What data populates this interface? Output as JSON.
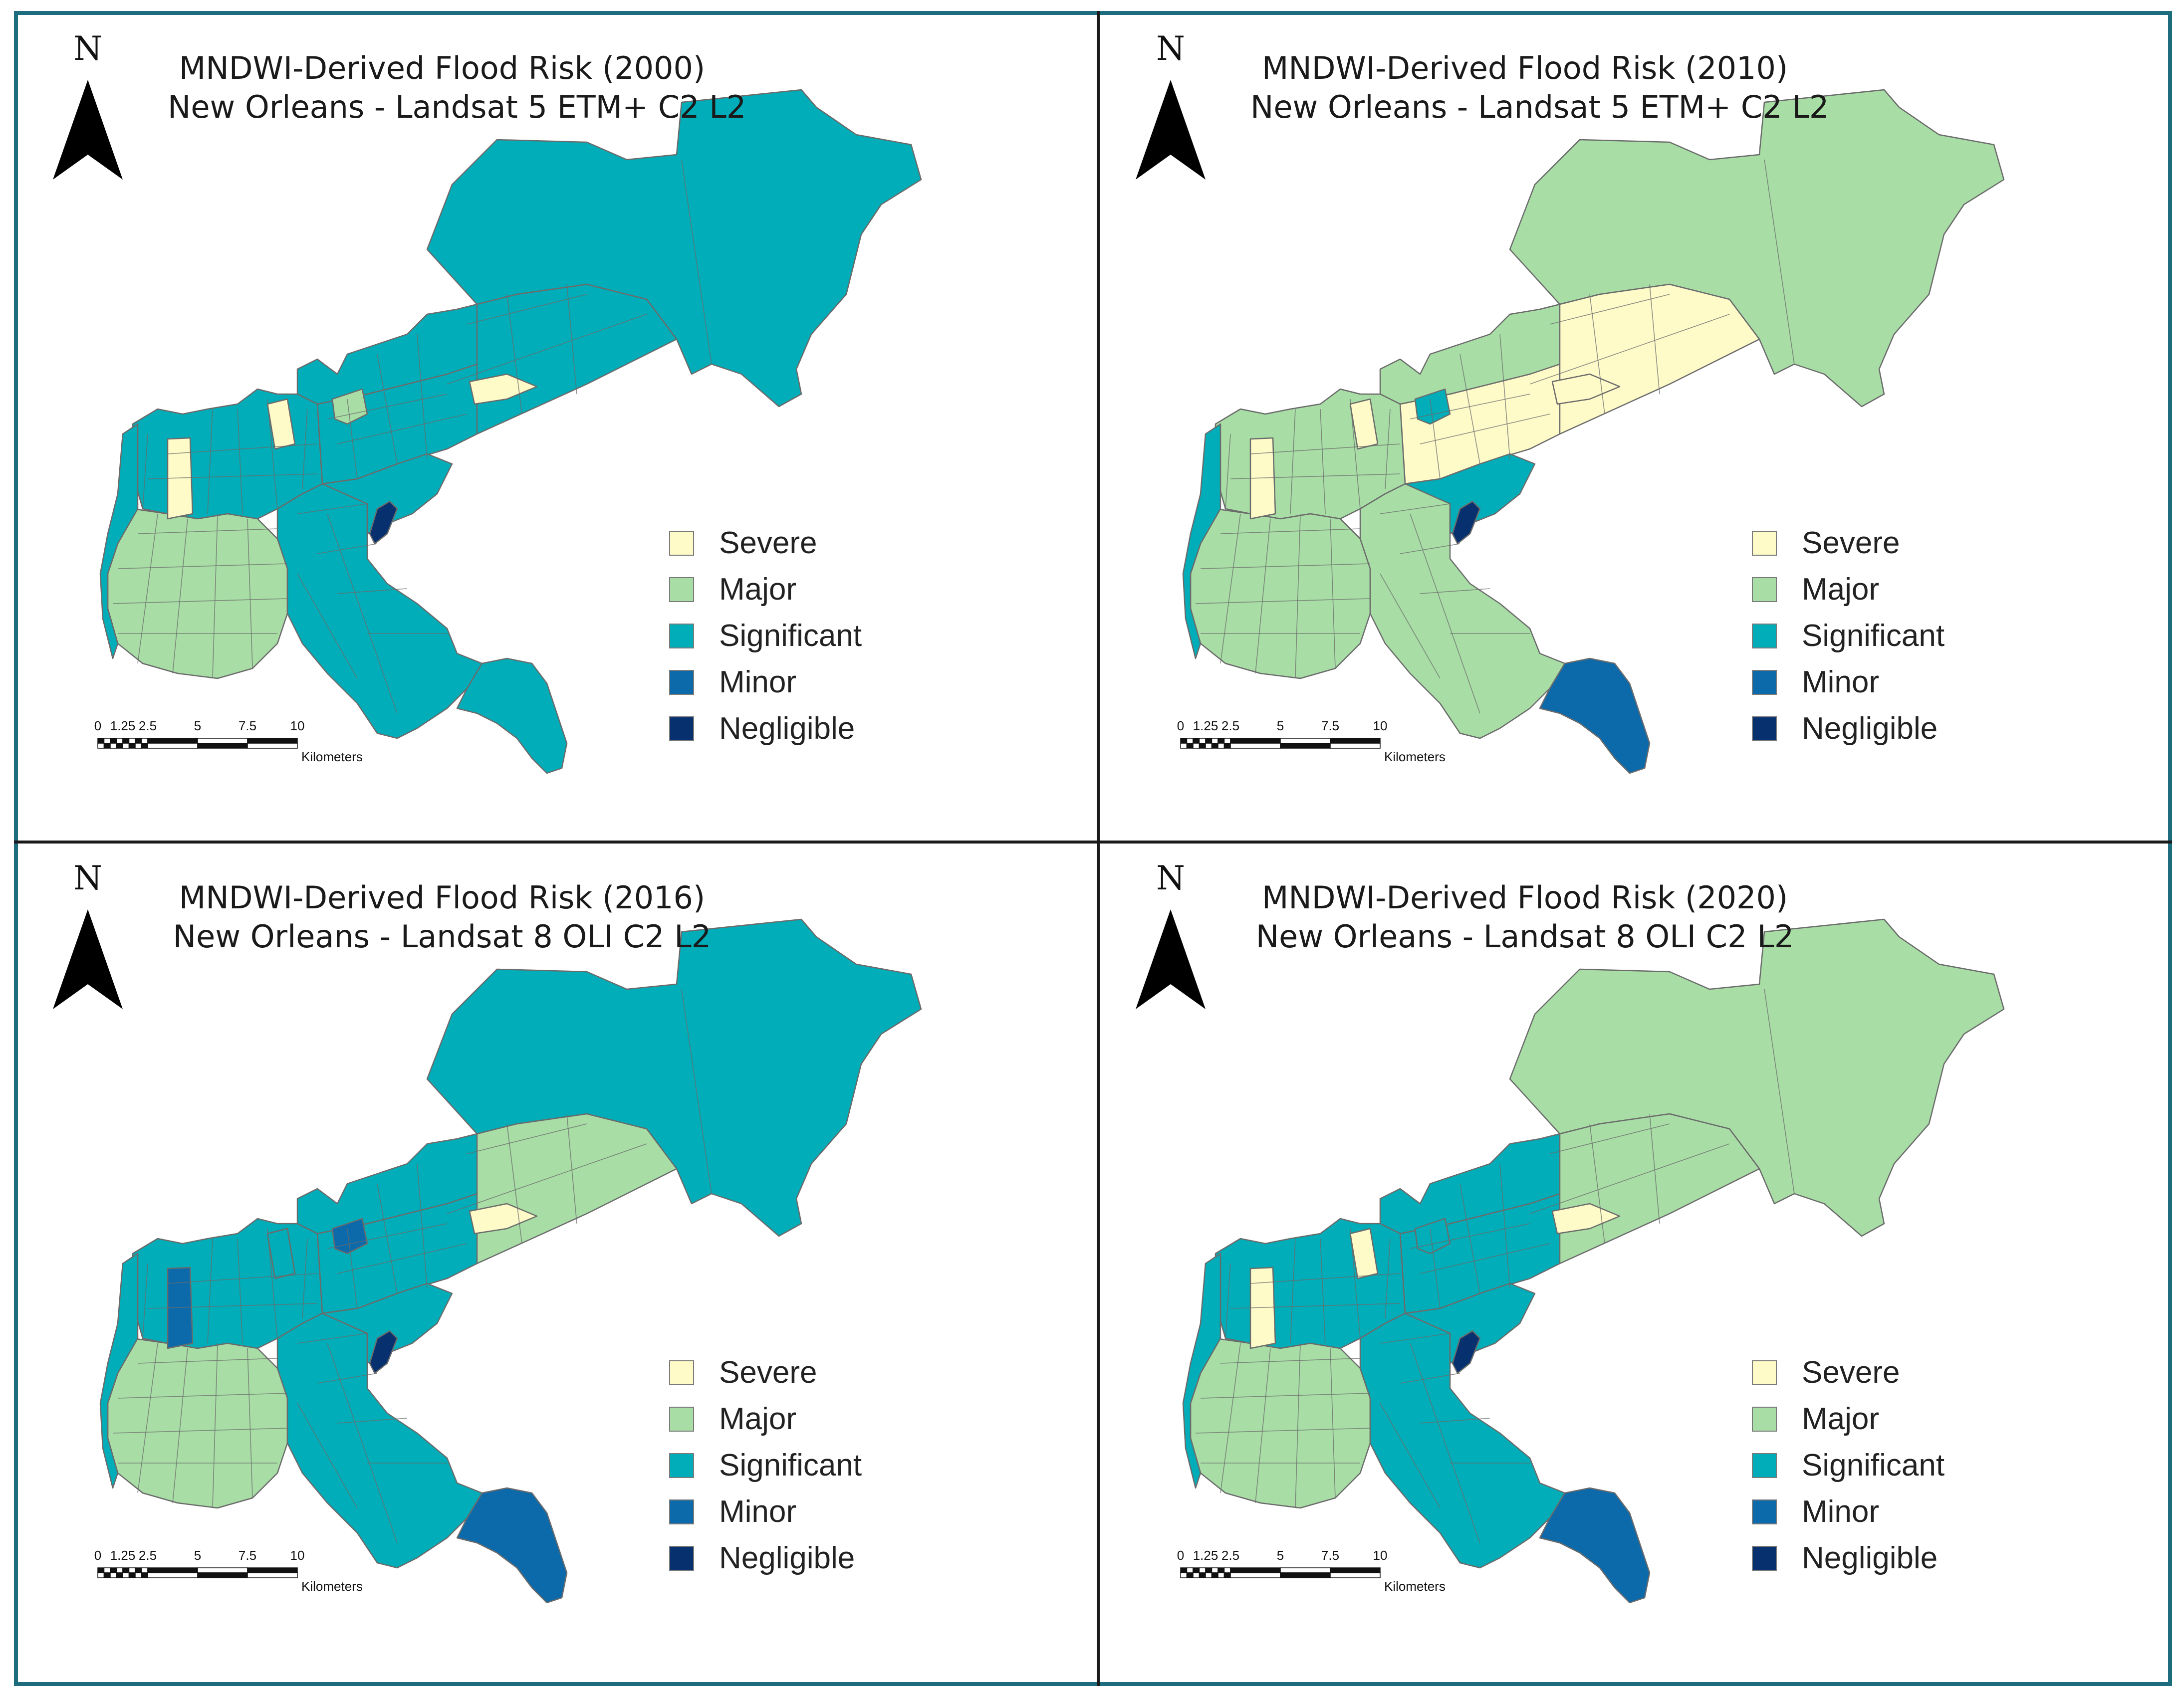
{
  "colors": {
    "severe": "#fefbc9",
    "major": "#a8dea6",
    "significant": "#00adb8",
    "minor": "#0d6aaa",
    "negligible": "#07316e",
    "frame": "#1d6d7e",
    "boundary": "#6b6b6b"
  },
  "legend_title": "",
  "legend": [
    {
      "key": "severe",
      "label": "Severe"
    },
    {
      "key": "major",
      "label": "Major"
    },
    {
      "key": "significant",
      "label": "Significant"
    },
    {
      "key": "minor",
      "label": "Minor"
    },
    {
      "key": "negligible",
      "label": "Negligible"
    }
  ],
  "north_arrow": {
    "label": "N",
    "icon": "north-arrow-icon"
  },
  "scale_bar": {
    "ticks": [
      "0",
      "1.25",
      "2.5",
      "5",
      "7.5",
      "10"
    ],
    "tick_values": [
      0,
      1.25,
      2.5,
      5,
      7.5,
      10
    ],
    "unit": "Kilometers"
  },
  "panels": [
    {
      "id": "2000",
      "title_line1": "MNDWI-Derived Flood Risk (2000)",
      "title_line2": "New Orleans - Landsat 5 ETM+ C2 L2",
      "region_class": {
        "ne_east": "significant",
        "ne_corridor": "significant",
        "central_band": "significant",
        "north_lakefront": "significant",
        "midcity": "significant",
        "uptown": "major",
        "west_strip": "significant",
        "algiers": "significant",
        "lower9": "significant",
        "algiers_tail": "significant",
        "industrial": "negligible",
        "severe_wedge": "severe",
        "severe_patch_west": "severe",
        "severe_patch_mid": "severe",
        "lakeview_pocket": "major"
      }
    },
    {
      "id": "2010",
      "title_line1": "MNDWI-Derived Flood Risk (2010)",
      "title_line2": "New Orleans - Landsat 5 ETM+ C2 L2",
      "region_class": {
        "ne_east": "major",
        "ne_corridor": "severe",
        "central_band": "severe",
        "north_lakefront": "major",
        "midcity": "major",
        "uptown": "major",
        "west_strip": "significant",
        "algiers": "major",
        "lower9": "significant",
        "algiers_tail": "minor",
        "industrial": "negligible",
        "severe_wedge": "severe",
        "severe_patch_west": "severe",
        "severe_patch_mid": "severe",
        "lakeview_pocket": "significant"
      }
    },
    {
      "id": "2016",
      "title_line1": "MNDWI-Derived Flood Risk (2016)",
      "title_line2": "New Orleans - Landsat 8 OLI C2 L2",
      "region_class": {
        "ne_east": "significant",
        "ne_corridor": "major",
        "central_band": "significant",
        "north_lakefront": "significant",
        "midcity": "significant",
        "uptown": "major",
        "west_strip": "significant",
        "algiers": "significant",
        "lower9": "significant",
        "algiers_tail": "minor",
        "industrial": "negligible",
        "severe_wedge": "severe",
        "severe_patch_west": "minor",
        "severe_patch_mid": "significant",
        "lakeview_pocket": "minor"
      }
    },
    {
      "id": "2020",
      "title_line1": "MNDWI-Derived Flood Risk (2020)",
      "title_line2": "New Orleans - Landsat 8 OLI C2 L2",
      "region_class": {
        "ne_east": "major",
        "ne_corridor": "major",
        "central_band": "significant",
        "north_lakefront": "significant",
        "midcity": "significant",
        "uptown": "major",
        "west_strip": "significant",
        "algiers": "significant",
        "lower9": "significant",
        "algiers_tail": "minor",
        "industrial": "negligible",
        "severe_wedge": "severe",
        "severe_patch_west": "severe",
        "severe_patch_mid": "severe",
        "lakeview_pocket": "significant"
      }
    }
  ]
}
